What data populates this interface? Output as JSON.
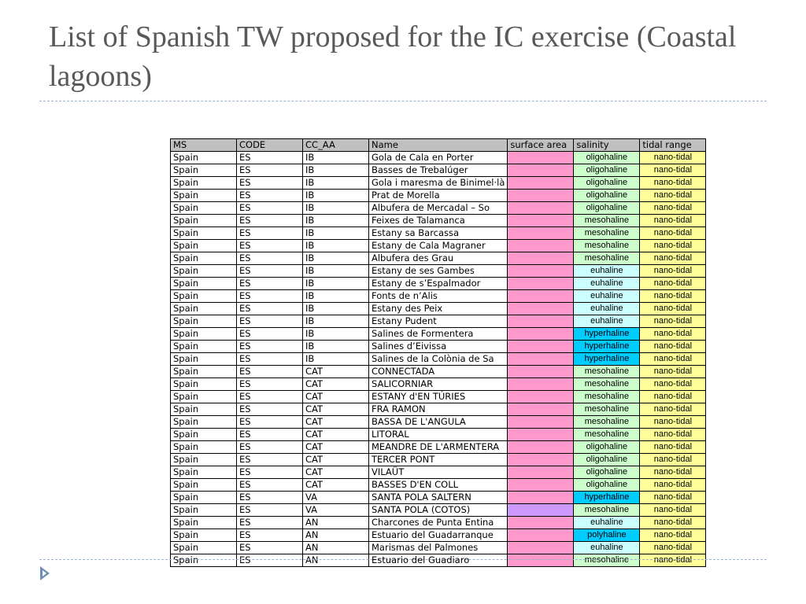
{
  "title": "List of Spanish TW proposed for the IC exercise (Coastal lagoons)",
  "table": {
    "headers": [
      "MS",
      "CODE",
      "CC_AA",
      "Name",
      "surface area",
      "salinity",
      "tidal range"
    ],
    "rows": [
      {
        "ms": "Spain",
        "code": "ES",
        "cc_aa": "IB",
        "name": "Gola de Cala en Porter",
        "salinity": "oligohaline",
        "tidal_range": "nano-tidal"
      },
      {
        "ms": "Spain",
        "code": "ES",
        "cc_aa": "IB",
        "name": "Basses de Trebalúger",
        "salinity": "oligohaline",
        "tidal_range": "nano-tidal"
      },
      {
        "ms": "Spain",
        "code": "ES",
        "cc_aa": "IB",
        "name": "Gola i maresma de Binimel·là",
        "salinity": "oligohaline",
        "tidal_range": "nano-tidal"
      },
      {
        "ms": "Spain",
        "code": "ES",
        "cc_aa": "IB",
        "name": "Prat de Morella",
        "salinity": "oligohaline",
        "tidal_range": "nano-tidal"
      },
      {
        "ms": "Spain",
        "code": "ES",
        "cc_aa": "IB",
        "name": "Albufera de Mercadal – So",
        "salinity": "oligohaline",
        "tidal_range": "nano-tidal"
      },
      {
        "ms": "Spain",
        "code": "ES",
        "cc_aa": "IB",
        "name": "Feixes de Talamanca",
        "salinity": "mesohaline",
        "tidal_range": "nano-tidal"
      },
      {
        "ms": "Spain",
        "code": "ES",
        "cc_aa": "IB",
        "name": "Estany sa Barcassa",
        "salinity": "mesohaline",
        "tidal_range": "nano-tidal"
      },
      {
        "ms": "Spain",
        "code": "ES",
        "cc_aa": "IB",
        "name": "Estany de Cala Magraner",
        "salinity": "mesohaline",
        "tidal_range": "nano-tidal"
      },
      {
        "ms": "Spain",
        "code": "ES",
        "cc_aa": "IB",
        "name": "Albufera des Grau",
        "salinity": "mesohaline",
        "tidal_range": "nano-tidal"
      },
      {
        "ms": "Spain",
        "code": "ES",
        "cc_aa": "IB",
        "name": "Estany de ses Gambes",
        "salinity": "euhaline",
        "tidal_range": "nano-tidal"
      },
      {
        "ms": "Spain",
        "code": "ES",
        "cc_aa": "IB",
        "name": "Estany de s’Espalmador",
        "salinity": "euhaline",
        "tidal_range": "nano-tidal"
      },
      {
        "ms": "Spain",
        "code": "ES",
        "cc_aa": "IB",
        "name": "Fonts de n’Alis",
        "salinity": "euhaline",
        "tidal_range": "nano-tidal"
      },
      {
        "ms": "Spain",
        "code": "ES",
        "cc_aa": "IB",
        "name": "Estany des Peix",
        "salinity": "euhaline",
        "tidal_range": "nano-tidal"
      },
      {
        "ms": "Spain",
        "code": "ES",
        "cc_aa": "IB",
        "name": "Estany Pudent",
        "salinity": "euhaline",
        "tidal_range": "nano-tidal"
      },
      {
        "ms": "Spain",
        "code": "ES",
        "cc_aa": "IB",
        "name": "Salines de Formentera",
        "salinity": "hyperhaline",
        "tidal_range": "nano-tidal"
      },
      {
        "ms": "Spain",
        "code": "ES",
        "cc_aa": "IB",
        "name": "Salines d’Eivissa",
        "salinity": "hyperhaline",
        "tidal_range": "nano-tidal"
      },
      {
        "ms": "Spain",
        "code": "ES",
        "cc_aa": "IB",
        "name": "Salines de la Colònia de Sa",
        "salinity": "hyperhaline",
        "tidal_range": "nano-tidal"
      },
      {
        "ms": "Spain",
        "code": "ES",
        "cc_aa": "CAT",
        "name": "CONNECTADA",
        "salinity": "mesohaline",
        "tidal_range": "nano-tidal"
      },
      {
        "ms": "Spain",
        "code": "ES",
        "cc_aa": "CAT",
        "name": "SALICORNIAR",
        "salinity": "mesohaline",
        "tidal_range": "nano-tidal"
      },
      {
        "ms": "Spain",
        "code": "ES",
        "cc_aa": "CAT",
        "name": "ESTANY d'EN TÚRIES",
        "salinity": "mesohaline",
        "tidal_range": "nano-tidal"
      },
      {
        "ms": "Spain",
        "code": "ES",
        "cc_aa": "CAT",
        "name": "FRA RAMON",
        "salinity": "mesohaline",
        "tidal_range": "nano-tidal"
      },
      {
        "ms": "Spain",
        "code": "ES",
        "cc_aa": "CAT",
        "name": "BASSA DE L'ANGULA",
        "salinity": "mesohaline",
        "tidal_range": "nano-tidal"
      },
      {
        "ms": "Spain",
        "code": "ES",
        "cc_aa": "CAT",
        "name": "LITORAL",
        "salinity": "mesohaline",
        "tidal_range": "nano-tidal"
      },
      {
        "ms": "Spain",
        "code": "ES",
        "cc_aa": "CAT",
        "name": "MEANDRE DE L'ARMENTERA",
        "salinity": "oligohaline",
        "tidal_range": "nano-tidal"
      },
      {
        "ms": "Spain",
        "code": "ES",
        "cc_aa": "CAT",
        "name": "TERCER PONT",
        "salinity": "oligohaline",
        "tidal_range": "nano-tidal"
      },
      {
        "ms": "Spain",
        "code": "ES",
        "cc_aa": "CAT",
        "name": "VILAÜT",
        "salinity": "oligohaline",
        "tidal_range": "nano-tidal"
      },
      {
        "ms": "Spain",
        "code": "ES",
        "cc_aa": "CAT",
        "name": "BASSES D'EN COLL",
        "salinity": "oligohaline",
        "tidal_range": "nano-tidal"
      },
      {
        "ms": "Spain",
        "code": "ES",
        "cc_aa": "VA",
        "name": " SANTA POLA SALTERN",
        "salinity": "hyperhaline",
        "tidal_range": "nano-tidal"
      },
      {
        "ms": "Spain",
        "code": "ES",
        "cc_aa": "VA",
        "name": "SANTA POLA (COTOS)",
        "salinity": "mesohaline",
        "tidal_range": "nano-tidal",
        "surface_color": "purple"
      },
      {
        "ms": "Spain",
        "code": "ES",
        "cc_aa": "AN",
        "name": "Charcones de Punta Entina",
        "salinity": "euhaline",
        "tidal_range": "nano-tidal"
      },
      {
        "ms": "Spain",
        "code": "ES",
        "cc_aa": "AN",
        "name": "Estuario del Guadarranque",
        "salinity": "polyhaline",
        "tidal_range": "nano-tidal"
      },
      {
        "ms": "Spain",
        "code": "ES",
        "cc_aa": "AN",
        "name": "Marismas del Palmones",
        "salinity": "euhaline",
        "tidal_range": "nano-tidal"
      },
      {
        "ms": "Spain",
        "code": "ES",
        "cc_aa": "AN",
        "name": "Estuario del Guadiaro",
        "salinity": "mesohaline",
        "tidal_range": "nano-tidal"
      }
    ]
  },
  "colors": {
    "header_bg": "#c0c0c0",
    "surface_area": "#ff99cc",
    "surface_area_alt": "#cc99ff",
    "tidal_range": "#ffff99",
    "oligohaline": "#ccffcc",
    "mesohaline": "#ccffcc",
    "euhaline": "#ccffff",
    "hyperhaline": "#00ccff",
    "polyhaline": "#00ccff"
  },
  "icons": {
    "bullet": "triangle-bullet-icon"
  }
}
